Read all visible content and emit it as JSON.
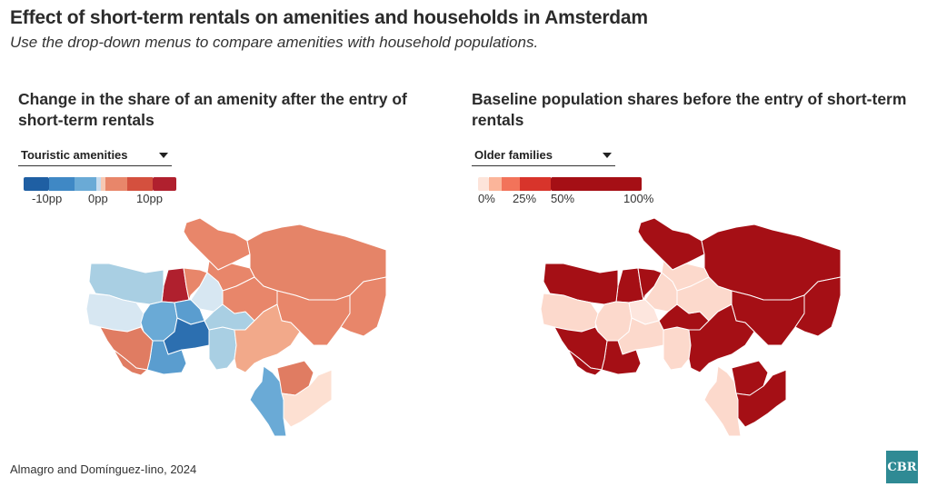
{
  "header": {
    "title": "Effect of short-term rentals on amenities and households in Amsterdam",
    "subtitle": "Use the drop-down menus to compare amenities with household populations."
  },
  "left_panel": {
    "title": "Change in the share of an amenity after the entry of short-term rentals",
    "dropdown_value": "Touristic amenities",
    "legend_ticks": [
      "-10pp",
      "0pp",
      "10pp"
    ],
    "legend_colors": [
      "#1f5fa3",
      "#3f88c5",
      "#6aaad6",
      "#c7dcee",
      "#f7c8b3",
      "#e8866a",
      "#d4503e",
      "#b0202e"
    ]
  },
  "right_panel": {
    "title": "Baseline population shares before the entry of short-term rentals",
    "dropdown_value": "Older families",
    "legend_ticks": [
      "0%",
      "25%",
      "50%",
      "100%"
    ],
    "legend_colors": [
      "#fde4da",
      "#fbb59a",
      "#f2735a",
      "#d8342b",
      "#a50f15"
    ]
  },
  "map_colors": {
    "left": {
      "nw_deep": "#b0202e",
      "north_large": "#e58468",
      "north_small": "#e8866a",
      "west_light": "#a9cfe3",
      "west_pale": "#d7e7f2",
      "west_mid": "#6aaad6",
      "center_deep": "#2c6fb0",
      "center_mid": "#5a9dcf",
      "center_light": "#9cc7e1",
      "east_salmon": "#f2a98a",
      "east_orange": "#e8866a",
      "se_blue": "#6aaad6",
      "se_pale": "#fde0d2",
      "se_orange": "#e07c62",
      "sw_orange": "#e07c62"
    },
    "right": {
      "dark": "#a50f15",
      "pale": "#fcd9cc",
      "paler": "#fde6de"
    }
  },
  "footer": {
    "source": "Almagro and Domínguez-Iino, 2024",
    "logo_text": "CBR"
  }
}
